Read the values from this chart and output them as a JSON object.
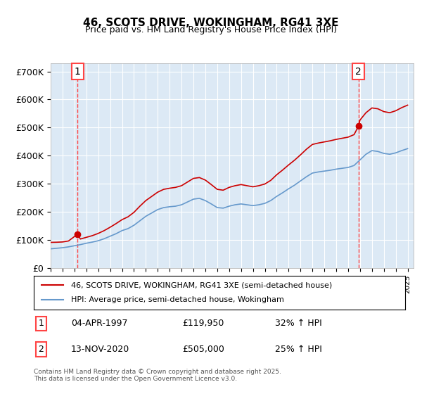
{
  "title": "46, SCOTS DRIVE, WOKINGHAM, RG41 3XE",
  "subtitle": "Price paid vs. HM Land Registry's House Price Index (HPI)",
  "legend_line1": "46, SCOTS DRIVE, WOKINGHAM, RG41 3XE (semi-detached house)",
  "legend_line2": "HPI: Average price, semi-detached house, Wokingham",
  "sale1_label": "1",
  "sale1_date": "04-APR-1997",
  "sale1_price": 119950,
  "sale1_pct": "32% ↑ HPI",
  "sale1_year": 1997.26,
  "sale2_label": "2",
  "sale2_date": "13-NOV-2020",
  "sale2_price": 505000,
  "sale2_year": 2020.87,
  "sale2_pct": "25% ↑ HPI",
  "red_line_color": "#cc0000",
  "blue_line_color": "#6699cc",
  "dashed_color": "#ff4444",
  "bg_color": "#dce9f5",
  "plot_bg": "#dce9f5",
  "ylabel_format": "£{0}K",
  "yticks": [
    0,
    100000,
    200000,
    300000,
    400000,
    500000,
    600000,
    700000
  ],
  "ytick_labels": [
    "£0",
    "£100K",
    "£200K",
    "£300K",
    "£400K",
    "£500K",
    "£600K",
    "£700K"
  ],
  "footer": "Contains HM Land Registry data © Crown copyright and database right 2025.\nThis data is licensed under the Open Government Licence v3.0.",
  "hpi_years": [
    1995,
    1995.5,
    1996,
    1996.5,
    1997,
    1997.5,
    1998,
    1998.5,
    1999,
    1999.5,
    2000,
    2000.5,
    2001,
    2001.5,
    2002,
    2002.5,
    2003,
    2003.5,
    2004,
    2004.5,
    2005,
    2005.5,
    2006,
    2006.5,
    2007,
    2007.5,
    2008,
    2008.5,
    2009,
    2009.5,
    2010,
    2010.5,
    2011,
    2011.5,
    2012,
    2012.5,
    2013,
    2013.5,
    2014,
    2014.5,
    2015,
    2015.5,
    2016,
    2016.5,
    2017,
    2017.5,
    2018,
    2018.5,
    2019,
    2019.5,
    2020,
    2020.5,
    2021,
    2021.5,
    2022,
    2022.5,
    2023,
    2023.5,
    2024,
    2024.5,
    2025
  ],
  "hpi_values": [
    68000,
    70000,
    72000,
    75000,
    79000,
    83000,
    88000,
    92000,
    97000,
    104000,
    113000,
    122000,
    133000,
    140000,
    152000,
    168000,
    184000,
    196000,
    208000,
    215000,
    218000,
    220000,
    225000,
    235000,
    245000,
    248000,
    240000,
    228000,
    215000,
    213000,
    220000,
    225000,
    228000,
    225000,
    222000,
    225000,
    230000,
    240000,
    255000,
    268000,
    282000,
    295000,
    310000,
    325000,
    338000,
    342000,
    345000,
    348000,
    352000,
    355000,
    358000,
    365000,
    385000,
    405000,
    418000,
    415000,
    408000,
    405000,
    410000,
    418000,
    425000
  ],
  "property_years": [
    1995,
    1995.5,
    1996,
    1996.5,
    1997.26,
    1997.5,
    1998,
    1998.5,
    1999,
    1999.5,
    2000,
    2000.5,
    2001,
    2001.5,
    2002,
    2002.5,
    2003,
    2003.5,
    2004,
    2004.5,
    2005,
    2005.5,
    2006,
    2006.5,
    2007,
    2007.5,
    2008,
    2008.5,
    2009,
    2009.5,
    2010,
    2010.5,
    2011,
    2011.5,
    2012,
    2012.5,
    2013,
    2013.5,
    2014,
    2014.5,
    2015,
    2015.5,
    2016,
    2016.5,
    2017,
    2017.5,
    2018,
    2018.5,
    2019,
    2019.5,
    2020,
    2020.5,
    2020.87,
    2021,
    2021.5,
    2022,
    2022.5,
    2023,
    2023.5,
    2024,
    2024.5,
    2025
  ],
  "property_values": [
    91000,
    91500,
    92500,
    96000,
    119950,
    103000,
    109000,
    115000,
    123000,
    133000,
    145000,
    158000,
    172000,
    182000,
    198000,
    220000,
    240000,
    255000,
    270000,
    280000,
    284000,
    287000,
    293000,
    306000,
    319000,
    322000,
    313000,
    297000,
    280000,
    277000,
    287000,
    293000,
    297000,
    293000,
    289000,
    293000,
    299000,
    312000,
    332000,
    349000,
    367000,
    384000,
    403000,
    423000,
    440000,
    445000,
    449000,
    453000,
    458000,
    462000,
    466000,
    475000,
    505000,
    527000,
    553000,
    570000,
    567000,
    557000,
    553000,
    560000,
    571000,
    580000
  ]
}
